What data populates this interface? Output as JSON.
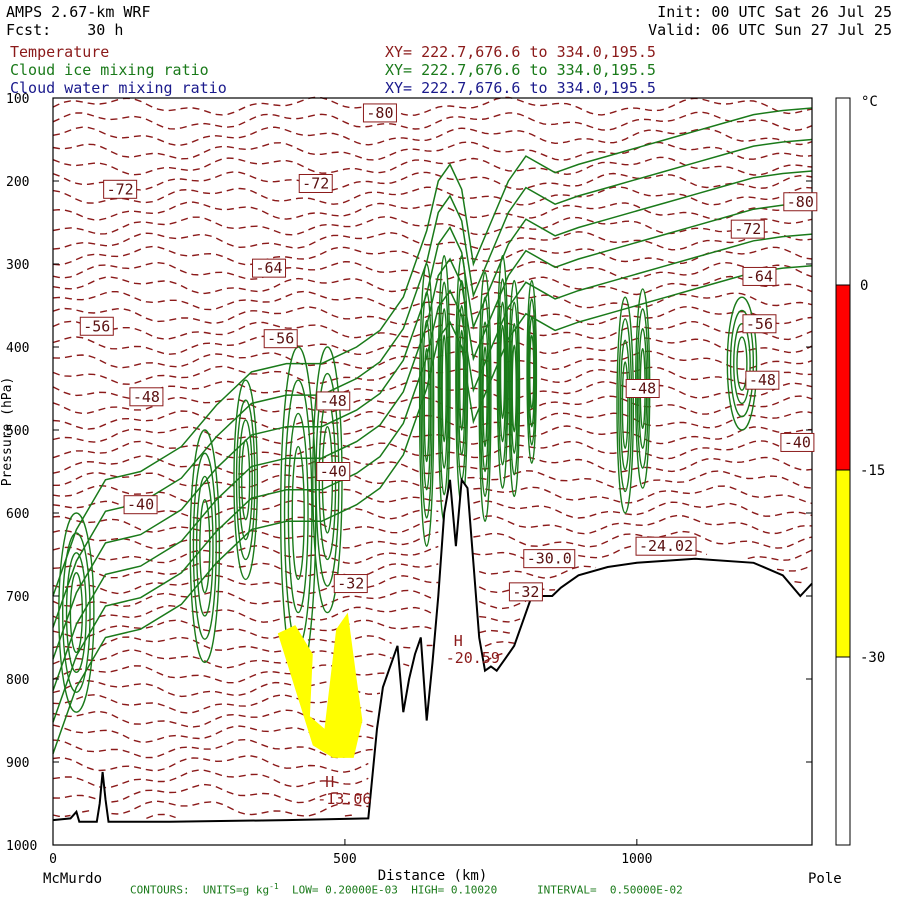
{
  "header": {
    "model": "AMPS 2.67-km WRF",
    "init": "Init: 00 UTC Sat 26 Jul 25",
    "fcst_label": "Fcst:",
    "fcst_value": "30 h",
    "valid": "Valid: 06 UTC Sun 27 Jul 25"
  },
  "fields": [
    {
      "name": "Temperature",
      "xy": "XY= 222.7,676.6 to 334.0,195.5",
      "color": "#8b1a1a"
    },
    {
      "name": "Cloud ice mixing ratio",
      "xy": "XY= 222.7,676.6 to 334.0,195.5",
      "color": "#1a7a1a"
    },
    {
      "name": "Cloud water mixing ratio",
      "xy": "XY= 222.7,676.6 to 334.0,195.5",
      "color": "#1a1a8c"
    }
  ],
  "footer": {
    "contours": "CONTOURS:  UNITS=g kg",
    "units_sup": "-1",
    "low": "LOW= 0.20000E-03",
    "high": "HIGH= 0.10020",
    "interval": "INTERVAL=  0.50000E-02"
  },
  "chart_data": {
    "type": "contour",
    "xlabel": "Distance (km)",
    "ylabel": "Pressure (hPa)",
    "xlim": [
      0,
      1300
    ],
    "ylim": [
      1000,
      100
    ],
    "x_ticks": [
      0,
      500,
      1000
    ],
    "y_ticks": [
      100,
      200,
      300,
      400,
      500,
      600,
      700,
      800,
      900,
      1000
    ],
    "x_end_labels": {
      "left": "McMurdo",
      "right": "Pole"
    },
    "terrain_surface": [
      [
        0,
        970
      ],
      [
        30,
        968
      ],
      [
        40,
        960
      ],
      [
        45,
        972
      ],
      [
        75,
        972
      ],
      [
        80,
        950
      ],
      [
        85,
        912
      ],
      [
        90,
        945
      ],
      [
        95,
        972
      ],
      [
        200,
        972
      ],
      [
        400,
        970
      ],
      [
        540,
        968
      ],
      [
        555,
        860
      ],
      [
        565,
        810
      ],
      [
        575,
        790
      ],
      [
        590,
        760
      ],
      [
        600,
        840
      ],
      [
        610,
        800
      ],
      [
        620,
        770
      ],
      [
        630,
        750
      ],
      [
        640,
        850
      ],
      [
        650,
        780
      ],
      [
        660,
        700
      ],
      [
        670,
        600
      ],
      [
        680,
        560
      ],
      [
        690,
        640
      ],
      [
        700,
        560
      ],
      [
        710,
        570
      ],
      [
        720,
        660
      ],
      [
        730,
        750
      ],
      [
        740,
        790
      ],
      [
        750,
        785
      ],
      [
        760,
        790
      ],
      [
        775,
        775
      ],
      [
        790,
        760
      ],
      [
        805,
        730
      ],
      [
        820,
        700
      ],
      [
        840,
        700
      ],
      [
        855,
        700
      ],
      [
        870,
        690
      ],
      [
        900,
        675
      ],
      [
        950,
        665
      ],
      [
        1000,
        660
      ],
      [
        1100,
        655
      ],
      [
        1200,
        660
      ],
      [
        1250,
        675
      ],
      [
        1280,
        700
      ],
      [
        1300,
        685
      ]
    ],
    "temperature_labels": [
      {
        "x": 560,
        "p": 118,
        "label": "-80"
      },
      {
        "x": 115,
        "p": 210,
        "label": "-72"
      },
      {
        "x": 450,
        "p": 203,
        "label": "-72"
      },
      {
        "x": 1280,
        "p": 225,
        "label": "-80"
      },
      {
        "x": 1190,
        "p": 258,
        "label": "-72"
      },
      {
        "x": 370,
        "p": 305,
        "label": "-64"
      },
      {
        "x": 1210,
        "p": 315,
        "label": "-64"
      },
      {
        "x": 75,
        "p": 375,
        "label": "-56"
      },
      {
        "x": 390,
        "p": 390,
        "label": "-56"
      },
      {
        "x": 1210,
        "p": 372,
        "label": "-56"
      },
      {
        "x": 160,
        "p": 460,
        "label": "-48"
      },
      {
        "x": 480,
        "p": 465,
        "label": "-48"
      },
      {
        "x": 1010,
        "p": 450,
        "label": "-48"
      },
      {
        "x": 1215,
        "p": 440,
        "label": "-48"
      },
      {
        "x": 480,
        "p": 550,
        "label": "-40"
      },
      {
        "x": 150,
        "p": 590,
        "label": "-40"
      },
      {
        "x": 1275,
        "p": 515,
        "label": "-40"
      },
      {
        "x": 510,
        "p": 685,
        "label": "-32"
      },
      {
        "x": 810,
        "p": 695,
        "label": "-32"
      },
      {
        "x": 850,
        "p": 655,
        "label": "-30.0"
      },
      {
        "x": 1050,
        "p": 640,
        "label": "-24.02"
      }
    ],
    "highs": [
      {
        "x": 480,
        "p": 935,
        "label": "H",
        "value": "-13.06"
      },
      {
        "x": 700,
        "p": 765,
        "label": "H",
        "value": "-20.59"
      }
    ],
    "cloud_water_region": {
      "x_range": [
        385,
        530
      ],
      "p_range": [
        725,
        895
      ],
      "shading": "yellow"
    },
    "colorbar": {
      "unit": "°C",
      "levels": [
        0,
        -15,
        -30
      ],
      "bands": [
        {
          "range": "above 0",
          "color": "#ffffff"
        },
        {
          "range": "0 to -15",
          "color": "#ff0000"
        },
        {
          "range": "-15 to -30",
          "color": "#ffff00"
        },
        {
          "range": "below -30",
          "color": "#ffffff"
        }
      ]
    }
  }
}
